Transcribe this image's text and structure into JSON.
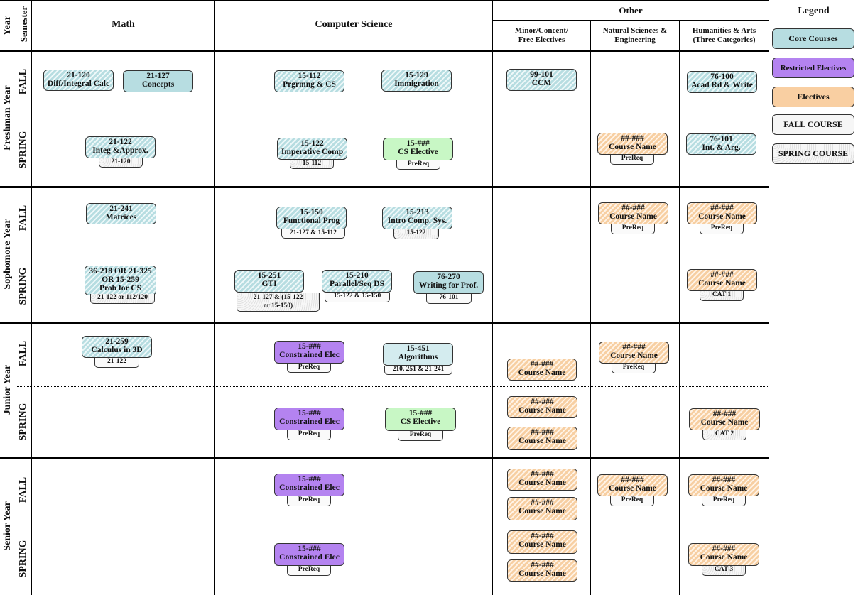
{
  "headers": {
    "year": "Year",
    "semester": "Semester",
    "math": "Math",
    "cs": "Computer Science",
    "other": "Other",
    "minor": "Minor/Concent/ Free Electives",
    "natsci": "Natural Sciences & Engineering",
    "hum": "Humanities & Arts (Three Categories)",
    "legend": "Legend"
  },
  "years": [
    "Freshman Year",
    "Sophomore Year",
    "Junior Year",
    "Senior Year"
  ],
  "semesters": {
    "fall": "FALL",
    "spring": "SPRING"
  },
  "legend": {
    "core": "Core Courses",
    "restricted": "Restricted Electives",
    "electives": "Electives",
    "fall_course": "FALL COURSE",
    "spring_course": "SPRING COURSE"
  },
  "courses": {
    "c21120": {
      "num": "21-120",
      "name": "Diff/Integral Calc"
    },
    "c21127": {
      "num": "21-127",
      "name": "Concepts"
    },
    "c15112": {
      "num": "15-112",
      "name": "Prgrmng & CS"
    },
    "c15129": {
      "num": "15-129",
      "name": "Immigration"
    },
    "c99101": {
      "num": "99-101",
      "name": "CCM"
    },
    "c76100": {
      "num": "76-100",
      "name": "Acad Rd & Write"
    },
    "c21122": {
      "num": "21-122",
      "name": "Integ &Approx.",
      "pre": "21-120"
    },
    "c15122": {
      "num": "15-122",
      "name": "Imperative Comp",
      "pre": "15-112"
    },
    "csel1": {
      "num": "15-###",
      "name": "CS Elective",
      "pre": "PreReq"
    },
    "ns1": {
      "num": "##-###",
      "name": "Course Name",
      "pre": "PreReq"
    },
    "c76101": {
      "num": "76-101",
      "name": "Int. & Arg."
    },
    "c21241": {
      "num": "21-241",
      "name": "Matrices"
    },
    "c15150": {
      "num": "15-150",
      "name": "Functional Prog",
      "pre": "21-127 & 15-112"
    },
    "c15213": {
      "num": "15-213",
      "name": "Intro Comp. Sys.",
      "pre": "15-122"
    },
    "ns2": {
      "num": "##-###",
      "name": "Course Name",
      "pre": "PreReq"
    },
    "hum2": {
      "num": "##-###",
      "name": "Course Name",
      "pre": "PreReq"
    },
    "prob": {
      "num": "36-218 OR 21-325",
      "num2": "OR 15-259",
      "name": "Prob for CS",
      "pre": "21-122 or 112/120"
    },
    "c15251": {
      "num": "15-251",
      "name": "GTI",
      "pre": "21-127 & (15-122",
      "pre2": "or 15-150)"
    },
    "c15210": {
      "num": "15-210",
      "name": "Parallel/Seq DS",
      "pre": "15-122 & 15-150"
    },
    "c76270": {
      "num": "76-270",
      "name": "Writing for Prof.",
      "pre": "76-101"
    },
    "cat1": {
      "num": "##-###",
      "name": "Course Name",
      "pre": "CAT 1"
    },
    "c21259": {
      "num": "21-259",
      "name": "Calculus in 3D",
      "pre": "21-122"
    },
    "ce1": {
      "num": "15-###",
      "name": "Constrained Elec",
      "pre": "PreReq"
    },
    "c15451": {
      "num": "15-451",
      "name": "Algorithms",
      "pre": "210, 251 & 21-241"
    },
    "min3": {
      "num": "##-###",
      "name": "Course Name"
    },
    "ns3": {
      "num": "##-###",
      "name": "Course Name",
      "pre": "PreReq"
    },
    "ce2": {
      "num": "15-###",
      "name": "Constrained Elec",
      "pre": "PreReq"
    },
    "csel2": {
      "num": "15-###",
      "name": "CS Elective",
      "pre": "PreReq"
    },
    "min4a": {
      "num": "##-###",
      "name": "Course Name"
    },
    "min4b": {
      "num": "##-###",
      "name": "Course Name"
    },
    "cat2": {
      "num": "##-###",
      "name": "Course Name",
      "pre": "CAT 2"
    },
    "ce3": {
      "num": "15-###",
      "name": "Constrained Elec",
      "pre": "PreReq"
    },
    "min5a": {
      "num": "##-###",
      "name": "Course Name"
    },
    "min5b": {
      "num": "##-###",
      "name": "Course Name"
    },
    "ns5": {
      "num": "##-###",
      "name": "Course Name",
      "pre": "PreReq"
    },
    "hum5": {
      "num": "##-###",
      "name": "Course Name",
      "pre": "PreReq"
    },
    "ce4": {
      "num": "15-###",
      "name": "Constrained Elec",
      "pre": "PreReq"
    },
    "min6a": {
      "num": "##-###",
      "name": "Course Name"
    },
    "min6b": {
      "num": "##-###",
      "name": "Course Name"
    },
    "cat3": {
      "num": "##-###",
      "name": "Course Name",
      "pre": "CAT 3"
    }
  }
}
